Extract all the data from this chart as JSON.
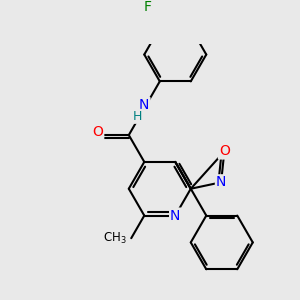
{
  "bg_color": "#e9e9e9",
  "bond_color": "#000000",
  "bond_lw": 1.5,
  "atom_colors": {
    "N": "#0000ff",
    "O": "#ff0000",
    "F": "#008000",
    "H": "#008080",
    "C": "#000000"
  },
  "xlim": [
    -1.55,
    1.55
  ],
  "ylim": [
    -1.55,
    1.55
  ]
}
